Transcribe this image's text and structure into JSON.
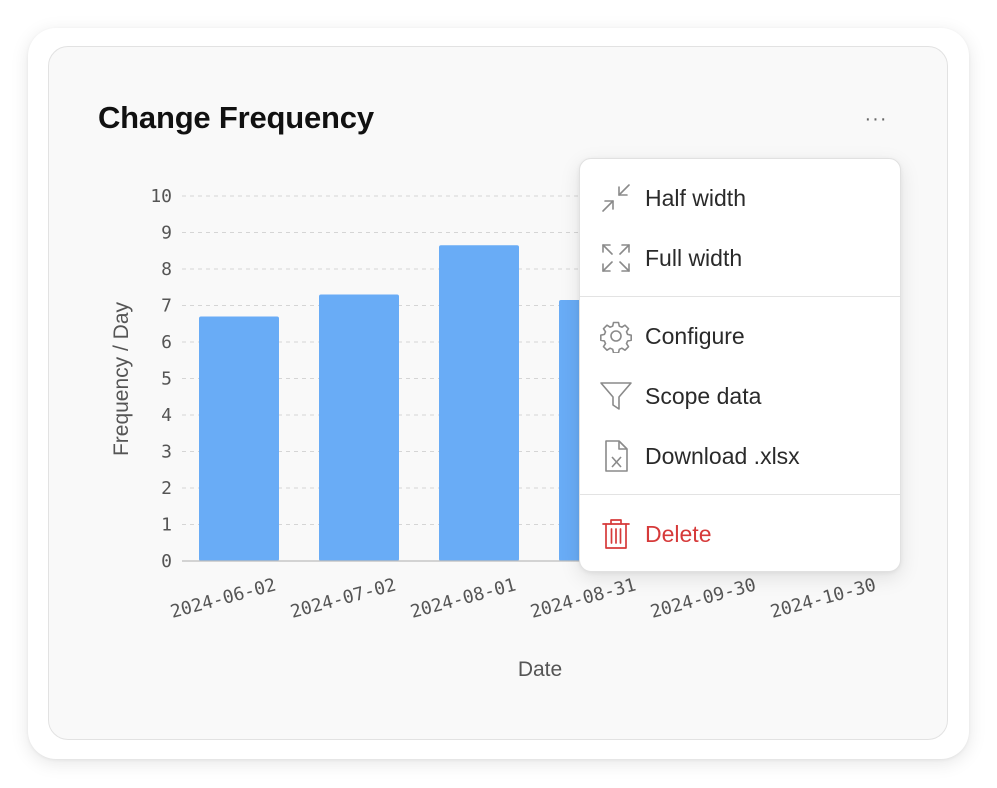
{
  "widget": {
    "title": "Change Frequency",
    "more_label": "···"
  },
  "menu": {
    "items": [
      {
        "label": "Half width",
        "icon": "collapse-arrows-icon"
      },
      {
        "label": "Full width",
        "icon": "expand-arrows-icon"
      },
      {
        "label": "Configure",
        "icon": "gear-icon"
      },
      {
        "label": "Scope data",
        "icon": "filter-funnel-icon"
      },
      {
        "label": "Download .xlsx",
        "icon": "xlsx-file-icon"
      },
      {
        "label": "Delete",
        "icon": "trash-icon"
      }
    ],
    "colors": {
      "danger": "#d63a3a",
      "text": "#2a2a2a",
      "icon": "#8a8a8a"
    }
  },
  "chart_data": {
    "type": "bar",
    "title": "Change Frequency",
    "xlabel": "Date",
    "ylabel": "Frequency / Day",
    "ylim": [
      0,
      10
    ],
    "yticks": [
      0,
      1,
      2,
      3,
      4,
      5,
      6,
      7,
      8,
      9,
      10
    ],
    "categories": [
      "2024-06-02",
      "2024-07-02",
      "2024-08-01",
      "2024-08-31",
      "2024-09-30",
      "2024-10-30"
    ],
    "values": [
      6.7,
      7.3,
      8.65,
      7.15,
      null,
      null
    ],
    "grid": true,
    "bar_color": "#69acf6"
  }
}
